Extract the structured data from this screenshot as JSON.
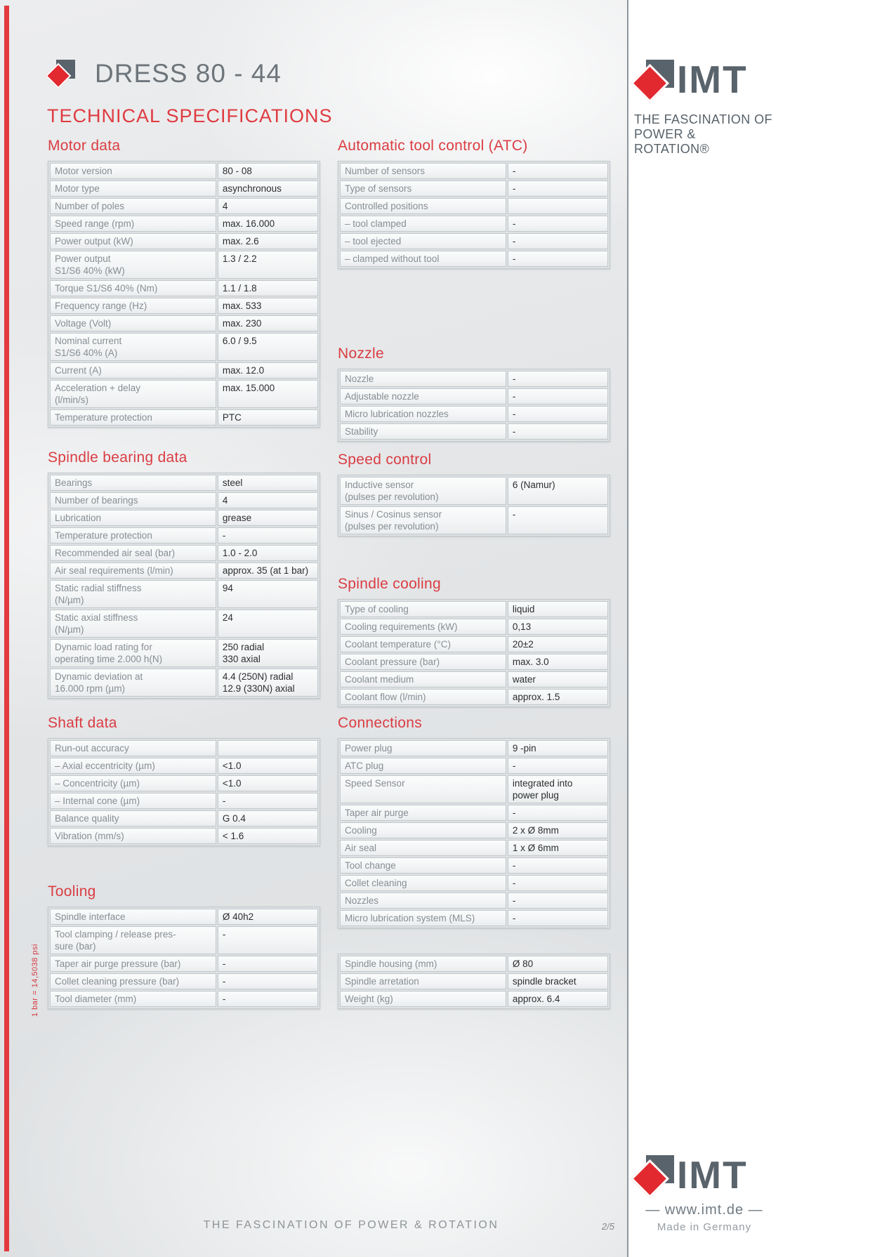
{
  "header": {
    "title": "DRESS 80 - 44",
    "subtitle": "TECHNICAL SPECIFICATIONS"
  },
  "sidebar": {
    "brand": "IMT",
    "tagline1": "THE FASCINATION OF",
    "tagline2": "POWER & ROTATION®",
    "website": "— www.imt.de —",
    "origin": "Made in Germany"
  },
  "footer": {
    "slogan": "THE FASCINATION OF POWER  &  ROTATION",
    "page": "2/5",
    "note": "1 bar = 14,5038 psi"
  },
  "colors": {
    "accent_red": "#df3b41",
    "logo_red": "#e2292f",
    "logo_gray": "#59636b",
    "label_gray": "#878e93",
    "value_dark": "#2b2e30"
  },
  "left_sections": [
    {
      "title": "Motor data",
      "rows": [
        [
          "Motor version",
          "80 - 08"
        ],
        [
          "Motor type",
          "asynchronous"
        ],
        [
          "Number of poles",
          "4"
        ],
        [
          "Speed range (rpm)",
          "max. 16.000"
        ],
        [
          "Power output (kW)",
          "max. 2.6"
        ],
        [
          "Power output\nS1/S6 40% (kW)",
          "1.3 / 2.2"
        ],
        [
          "Torque S1/S6 40% (Nm)",
          "1.1 / 1.8"
        ],
        [
          "Frequency range (Hz)",
          "max. 533"
        ],
        [
          "Voltage (Volt)",
          "max. 230"
        ],
        [
          "Nominal current\nS1/S6 40% (A)",
          "6.0 / 9.5"
        ],
        [
          "Current (A)",
          "max. 12.0"
        ],
        [
          "Acceleration + delay\n(l/min/s)",
          "max. 15.000"
        ],
        [
          "Temperature protection",
          "PTC"
        ]
      ]
    },
    {
      "title": "Spindle bearing data",
      "rows": [
        [
          "Bearings",
          "steel"
        ],
        [
          "Number of bearings",
          "4"
        ],
        [
          "Lubrication",
          "grease"
        ],
        [
          "Temperature protection",
          "-"
        ],
        [
          "Recommended air seal (bar)",
          "1.0 - 2.0"
        ],
        [
          "Air seal requirements (l/min)",
          "approx. 35 (at 1 bar)"
        ],
        [
          "Static radial stiffness\n(N/µm)",
          "94"
        ],
        [
          "Static axial stiffness\n(N/µm)",
          "24"
        ],
        [
          "Dynamic load rating for\noperating time 2.000 h(N)",
          "250 radial\n330 axial"
        ],
        [
          "Dynamic deviation at\n16.000 rpm  (µm)",
          " 4.4 (250N) radial\n12.9 (330N) axial"
        ]
      ]
    },
    {
      "title": "Shaft data",
      "rows": [
        [
          "Run-out accuracy",
          ""
        ],
        [
          "– Axial eccentricity (µm)",
          "<1.0"
        ],
        [
          "– Concentricity (µm)",
          "<1.0"
        ],
        [
          "– Internal cone (µm)",
          "-"
        ],
        [
          "Balance quality",
          "G 0.4"
        ],
        [
          "Vibration (mm/s)",
          "< 1.6"
        ]
      ]
    },
    {
      "title": "Tooling",
      "rows": [
        [
          "Spindle interface",
          "Ø 40h2"
        ],
        [
          "Tool clamping / release pres-\nsure  (bar)",
          "-"
        ],
        [
          "Taper air purge pressure (bar)",
          "-"
        ],
        [
          "Collet cleaning pressure (bar)",
          "-"
        ],
        [
          "Tool diameter (mm)",
          "-"
        ]
      ]
    }
  ],
  "right_sections": [
    {
      "title": "Automatic tool control (ATC)",
      "rows": [
        [
          "Number of sensors",
          "-"
        ],
        [
          "Type of sensors",
          "-"
        ],
        [
          "Controlled positions",
          ""
        ],
        [
          "– tool clamped",
          "-"
        ],
        [
          "– tool ejected",
          "-"
        ],
        [
          "– clamped without tool",
          "-"
        ]
      ]
    },
    {
      "title": "Nozzle",
      "rows": [
        [
          "Nozzle",
          "-"
        ],
        [
          "Adjustable nozzle",
          "-"
        ],
        [
          "Micro lubrication nozzles",
          "-"
        ],
        [
          "Stability",
          "-"
        ]
      ]
    },
    {
      "title": "Speed control",
      "rows": [
        [
          "Inductive sensor\n(pulses per revolution)",
          "6 (Namur)"
        ],
        [
          "Sinus / Cosinus sensor\n(pulses per revolution)",
          "-"
        ]
      ]
    },
    {
      "title": "Spindle cooling",
      "rows": [
        [
          "Type of cooling",
          "liquid"
        ],
        [
          "Cooling requirements (kW)",
          "0,13"
        ],
        [
          "Coolant temperature (°C)",
          "20±2"
        ],
        [
          "Coolant pressure (bar)",
          "max. 3.0"
        ],
        [
          "Coolant medium",
          "water"
        ],
        [
          "Coolant flow (l/min)",
          "approx. 1.5"
        ]
      ]
    },
    {
      "title": "Connections",
      "rows": [
        [
          "Power plug",
          "9 -pin"
        ],
        [
          "ATC plug",
          "-"
        ],
        [
          "Speed Sensor",
          "integrated into\npower plug"
        ],
        [
          "Taper air purge",
          "-"
        ],
        [
          "Cooling",
          "2 x Ø 8mm"
        ],
        [
          "Air seal",
          "1 x Ø 6mm"
        ],
        [
          "Tool change",
          "-"
        ],
        [
          "Collet cleaning",
          "-"
        ],
        [
          "Nozzles",
          "-"
        ],
        [
          "Micro lubrication system (MLS)",
          "-"
        ]
      ]
    },
    {
      "title": "",
      "rows": [
        [
          "Spindle housing (mm)",
          "Ø 80"
        ],
        [
          "Spindle arretation",
          "spindle bracket"
        ],
        [
          "Weight (kg)",
          "approx. 6.4"
        ]
      ]
    }
  ]
}
